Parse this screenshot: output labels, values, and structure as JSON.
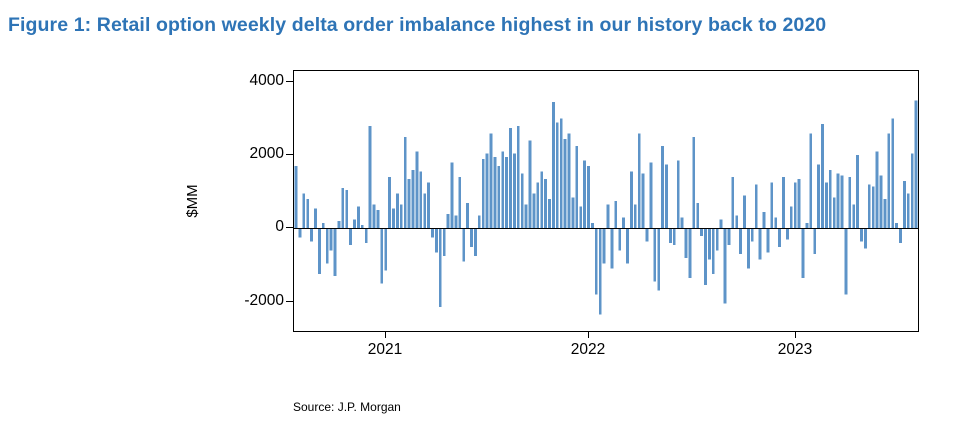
{
  "title": "Figure 1: Retail option weekly delta order imbalance highest in our history back to 2020",
  "source": "Source: J.P. Morgan",
  "colors": {
    "title": "#2E74B6",
    "bar": "#5E94C8",
    "axis": "#000000"
  },
  "chart_data": {
    "type": "bar",
    "title": "Figure 1: Retail option weekly delta order imbalance highest in our history back to 2020",
    "xlabel": "",
    "ylabel": "$MM",
    "ylim": [
      -2800,
      4300
    ],
    "y_ticks": [
      4000,
      2000,
      0,
      -2000
    ],
    "x_ticks": [
      "2021",
      "2022",
      "2023"
    ],
    "legend": "none",
    "grid": false,
    "frequency": "weekly",
    "x_range_note": "mid-2020 through 2023, one bar per week",
    "bar_color": "#5E94C8",
    "values": [
      1700,
      -250,
      950,
      800,
      -350,
      550,
      -1250,
      150,
      -950,
      -600,
      -1300,
      200,
      1100,
      1050,
      -450,
      250,
      600,
      100,
      -400,
      2800,
      650,
      500,
      -1500,
      -1150,
      1400,
      550,
      950,
      650,
      2500,
      1350,
      1600,
      2100,
      1550,
      950,
      1250,
      -250,
      -650,
      -2150,
      -750,
      400,
      1800,
      350,
      1400,
      -900,
      700,
      -500,
      -750,
      350,
      1900,
      2050,
      2600,
      1950,
      1700,
      2100,
      1950,
      2750,
      2050,
      2800,
      1500,
      650,
      2400,
      950,
      1250,
      1550,
      1350,
      800,
      3450,
      2900,
      3000,
      2450,
      2600,
      850,
      2250,
      600,
      1850,
      1700,
      150,
      -1800,
      -2350,
      -950,
      650,
      -1100,
      750,
      -600,
      300,
      -950,
      1550,
      650,
      2600,
      1500,
      -350,
      1800,
      -1450,
      -1700,
      2250,
      1750,
      -400,
      -450,
      1850,
      300,
      -800,
      -1350,
      2500,
      700,
      -200,
      -1550,
      -850,
      -1250,
      -600,
      250,
      -2050,
      -450,
      1400,
      350,
      -700,
      900,
      -1100,
      -350,
      1200,
      -850,
      450,
      -650,
      1250,
      300,
      -500,
      1400,
      -300,
      600,
      1250,
      1350,
      -1350,
      150,
      2600,
      -700,
      1750,
      2850,
      1250,
      1600,
      850,
      1500,
      1450,
      -1800,
      1400,
      650,
      2000,
      -350,
      -550,
      1200,
      1150,
      2100,
      1450,
      800,
      2600,
      3000,
      150,
      -400,
      1300,
      950,
      2050,
      3500
    ]
  }
}
